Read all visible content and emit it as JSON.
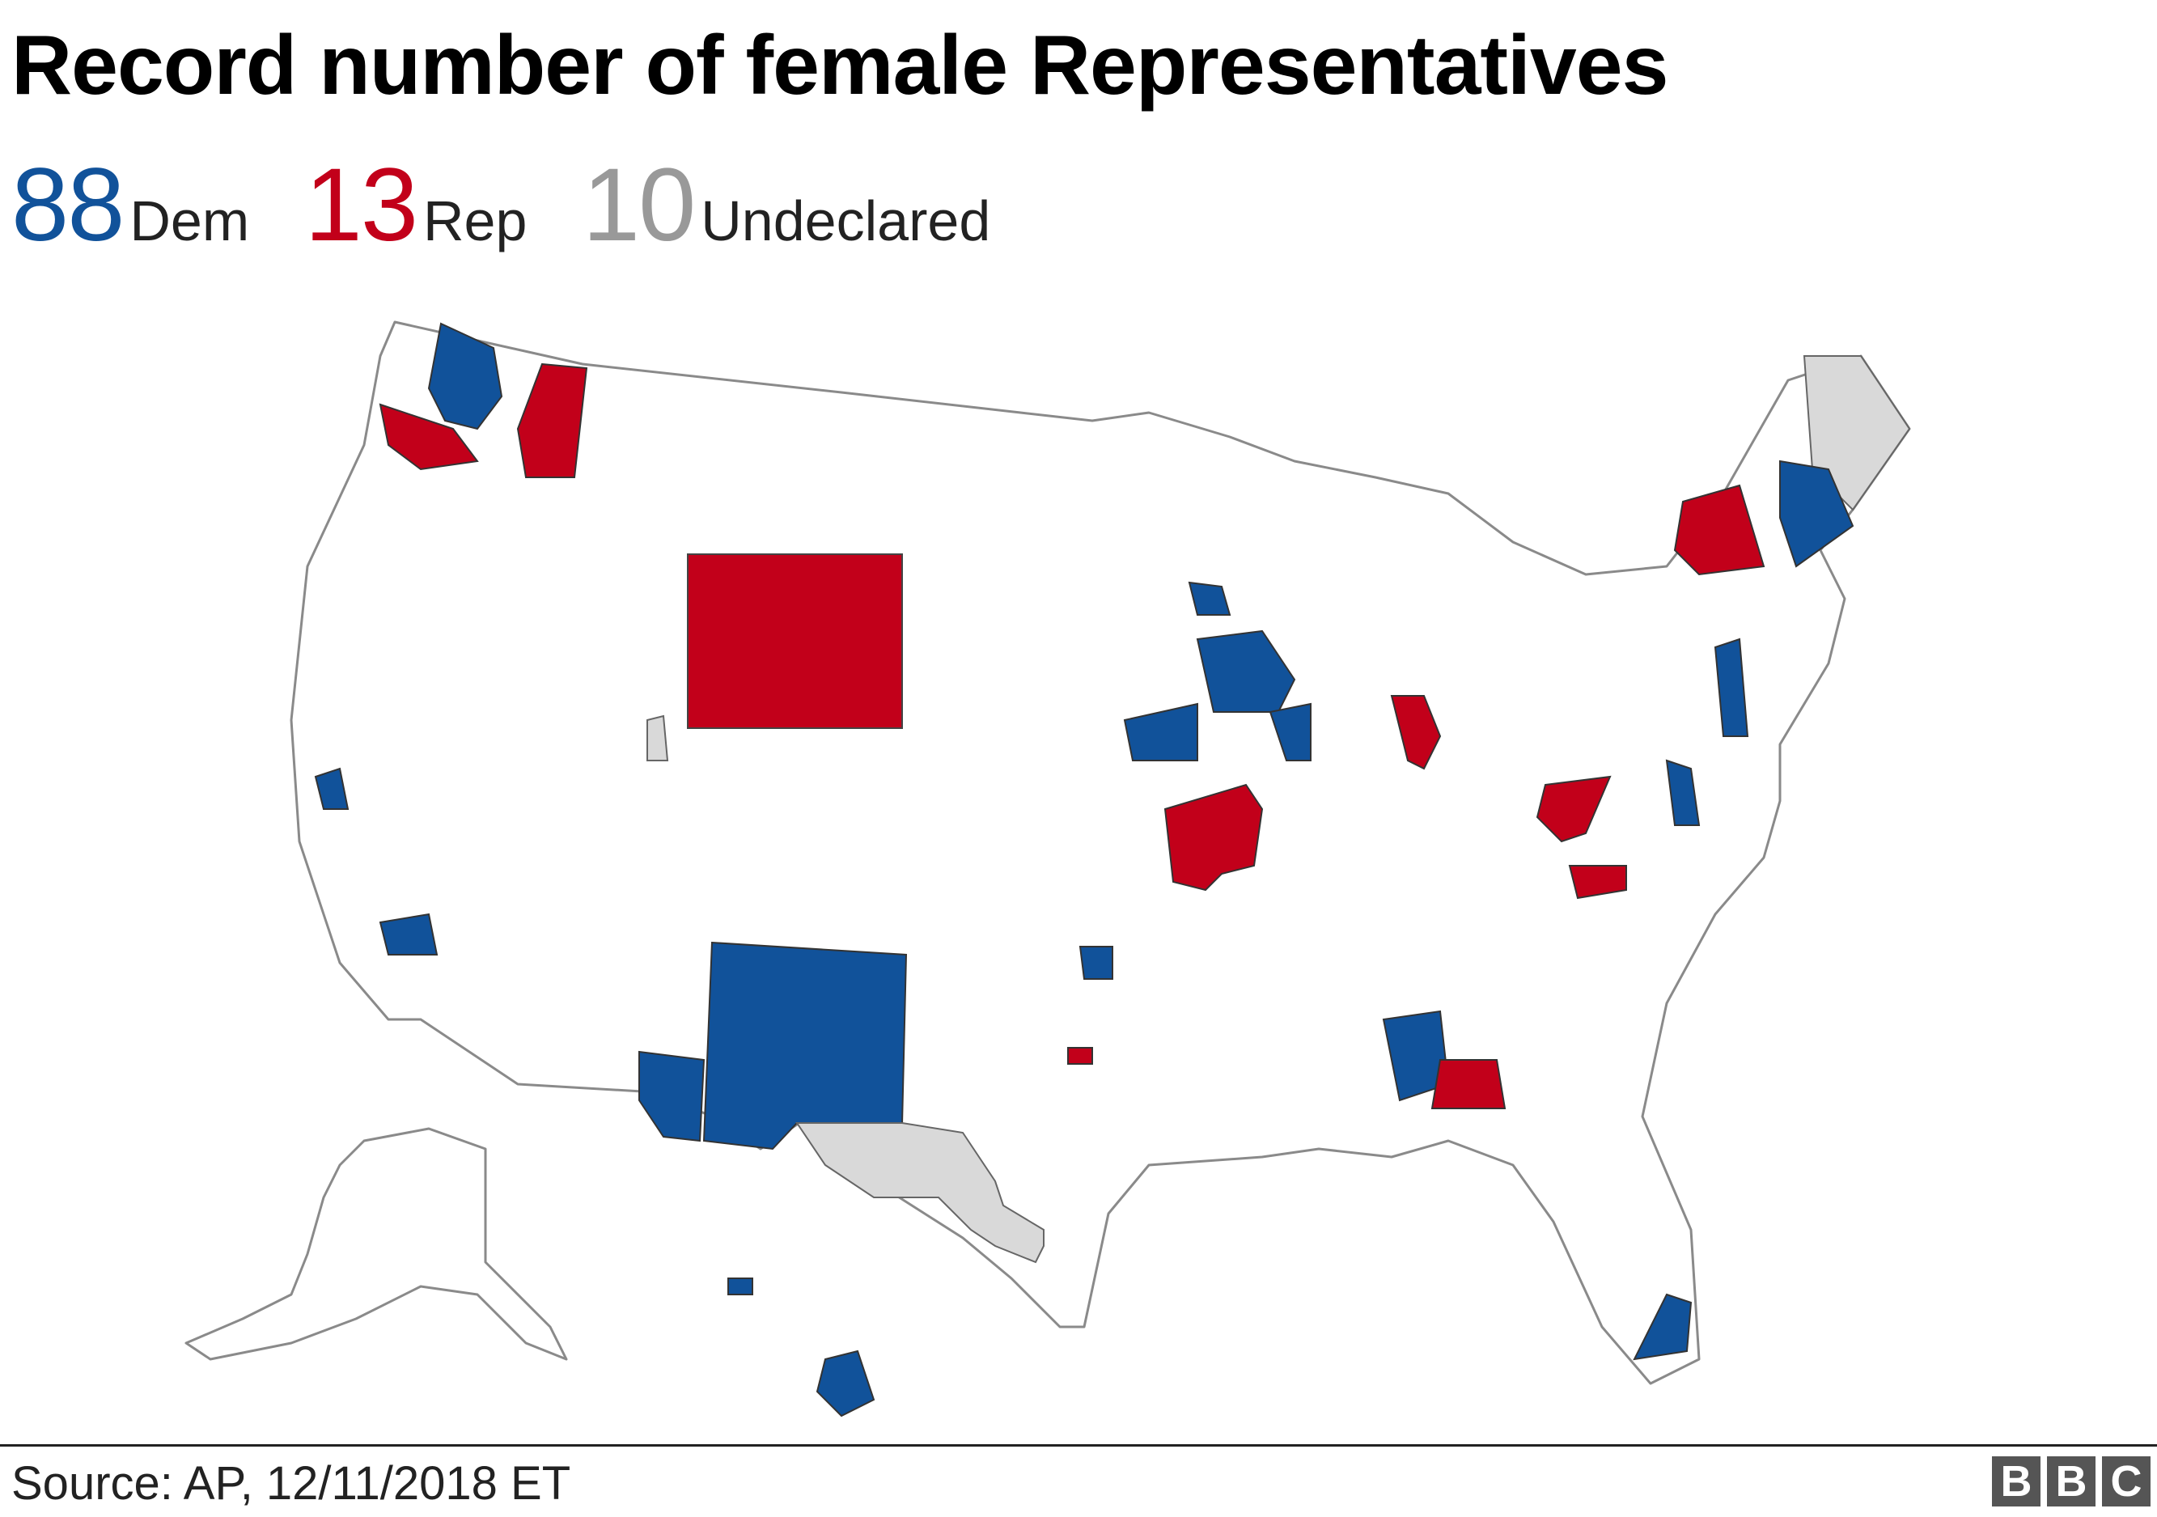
{
  "title": "Record number of female Representatives",
  "legend": [
    {
      "count": "88",
      "label": "Dem",
      "color": "#11529a"
    },
    {
      "count": "13",
      "label": "Rep",
      "color": "#c2001a"
    },
    {
      "count": "10",
      "label": "Undeclared",
      "color": "#999999"
    }
  ],
  "colors": {
    "dem": "#11529a",
    "rep": "#c2001a",
    "undeclared": "#d9d9d9",
    "land": "#ffffff",
    "border": "#8a8a8a"
  },
  "map": {
    "description_icons": [
      "usa-map"
    ]
  },
  "source": "Source: AP, 12/11/2018 ET",
  "logo": [
    "B",
    "B",
    "C"
  ]
}
